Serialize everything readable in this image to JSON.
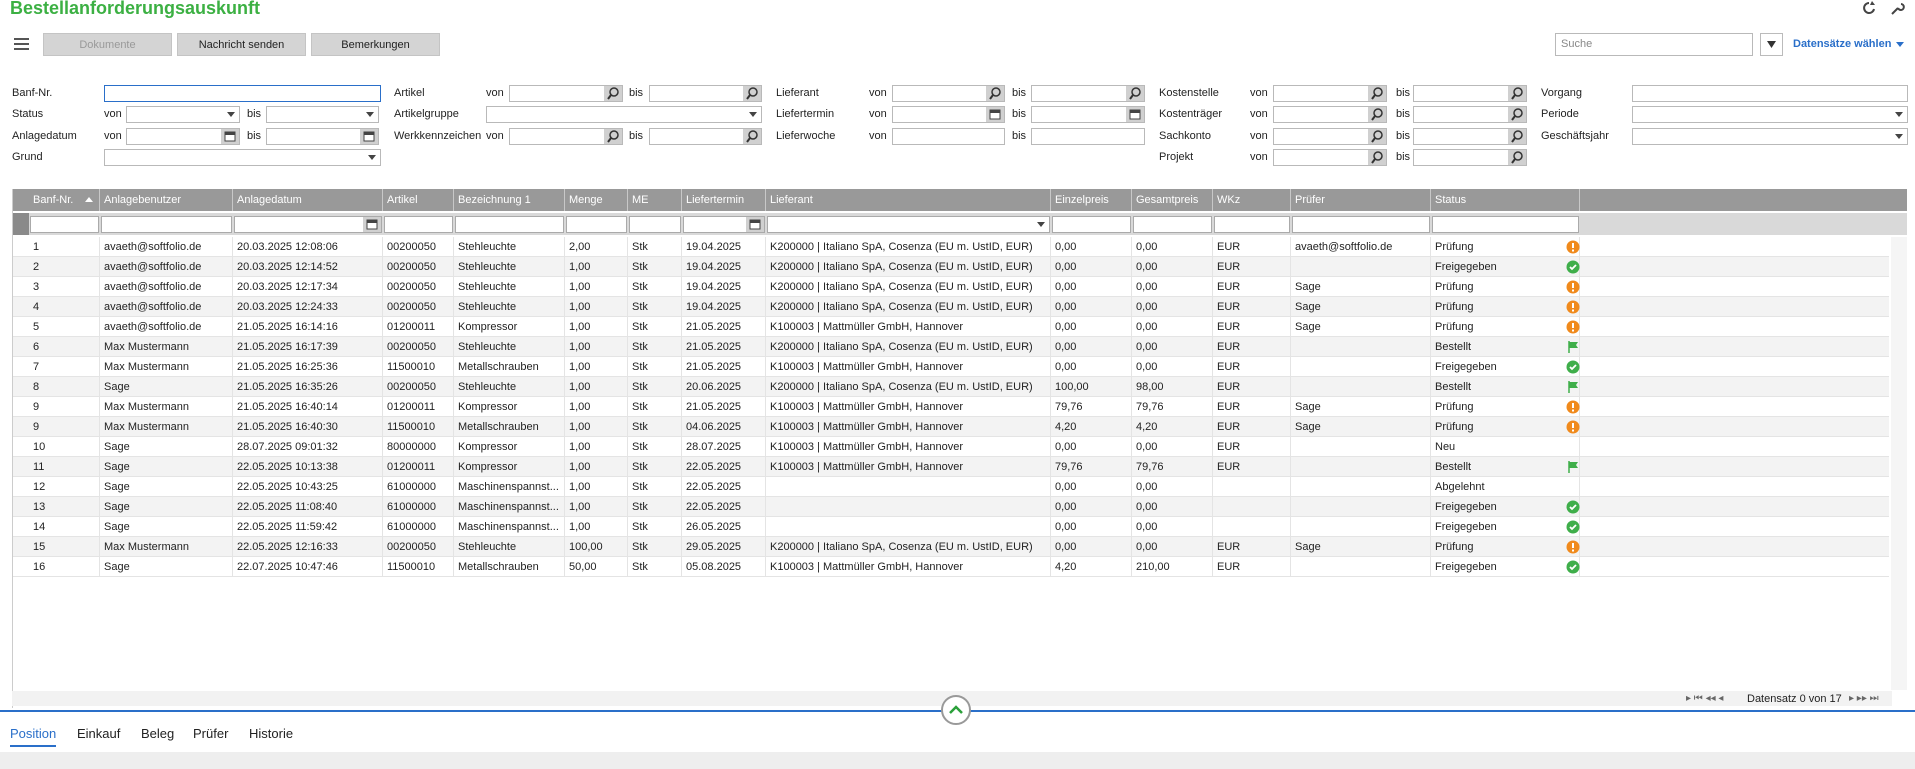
{
  "header": {
    "title": "Bestellanforderungsauskunft",
    "buttons": [
      "Dokumente",
      "Nachricht senden",
      "Bemerkungen"
    ],
    "search_placeholder": "Suche",
    "select_records": "Datensätze wählen"
  },
  "filters": {
    "from": "von",
    "to": "bis",
    "groups": [
      [
        "Banf-Nr.",
        "Status",
        "Anlagedatum",
        "Grund"
      ],
      [
        "Artikel",
        "Artikelgruppe",
        "Werkkennzeichen"
      ],
      [
        "Lieferant",
        "Liefertermin",
        "Lieferwoche"
      ],
      [
        "Kostenstelle",
        "Kostenträger",
        "Sachkonto",
        "Projekt"
      ],
      [
        "Vorgang",
        "Periode",
        "Geschäftsjahr"
      ]
    ]
  },
  "table": {
    "columns": [
      "Banf-Nr.",
      "Anlagebenutzer",
      "Anlagedatum",
      "Artikel",
      "Bezeichnung 1",
      "Menge",
      "ME",
      "Liefertermin",
      "Lieferant",
      "Einzelpreis",
      "Gesamtpreis",
      "WKz",
      "Prüfer",
      "Status"
    ],
    "rows": [
      [
        "1",
        "avaeth@softfolio.de",
        "20.03.2025 12:08:06",
        "00200050",
        "Stehleuchte",
        "2,00",
        "Stk",
        "19.04.2025",
        "K200000  |  Italiano SpA, Cosenza (EU m. UstID, EUR)",
        "0,00",
        "0,00",
        "EUR",
        "avaeth@softfolio.de",
        "Prüfung"
      ],
      [
        "2",
        "avaeth@softfolio.de",
        "20.03.2025 12:14:52",
        "00200050",
        "Stehleuchte",
        "1,00",
        "Stk",
        "19.04.2025",
        "K200000  |  Italiano SpA, Cosenza (EU m. UstID, EUR)",
        "0,00",
        "0,00",
        "EUR",
        null,
        "Freigegeben"
      ],
      [
        "3",
        "avaeth@softfolio.de",
        "20.03.2025 12:17:34",
        "00200050",
        "Stehleuchte",
        "1,00",
        "Stk",
        "19.04.2025",
        "K200000  |  Italiano SpA, Cosenza (EU m. UstID, EUR)",
        "0,00",
        "0,00",
        "EUR",
        "Sage",
        "Prüfung"
      ],
      [
        "4",
        "avaeth@softfolio.de",
        "20.03.2025 12:24:33",
        "00200050",
        "Stehleuchte",
        "1,00",
        "Stk",
        "19.04.2025",
        "K200000  |  Italiano SpA, Cosenza (EU m. UstID, EUR)",
        "0,00",
        "0,00",
        "EUR",
        "Sage",
        "Prüfung"
      ],
      [
        "5",
        "avaeth@softfolio.de",
        "21.05.2025 16:14:16",
        "01200011",
        "Kompressor",
        "1,00",
        "Stk",
        "21.05.2025",
        "K100003  |  Mattmüller GmbH, Hannover",
        "0,00",
        "0,00",
        "EUR",
        "Sage",
        "Prüfung"
      ],
      [
        "6",
        "Max Mustermann",
        "21.05.2025 16:17:39",
        "00200050",
        "Stehleuchte",
        "1,00",
        "Stk",
        "21.05.2025",
        "K200000  |  Italiano SpA, Cosenza (EU m. UstID, EUR)",
        "0,00",
        "0,00",
        "EUR",
        null,
        "Bestellt"
      ],
      [
        "7",
        "Max Mustermann",
        "21.05.2025 16:25:36",
        "11500010",
        "Metallschrauben",
        "1,00",
        "Stk",
        "21.05.2025",
        "K100003  |  Mattmüller GmbH, Hannover",
        "0,00",
        "0,00",
        "EUR",
        null,
        "Freigegeben"
      ],
      [
        "8",
        "Sage",
        "21.05.2025 16:35:26",
        "00200050",
        "Stehleuchte",
        "1,00",
        "Stk",
        "20.06.2025",
        "K200000  |  Italiano SpA, Cosenza (EU m. UstID, EUR)",
        "100,00",
        "98,00",
        "EUR",
        null,
        "Bestellt"
      ],
      [
        "9",
        "Max Mustermann",
        "21.05.2025 16:40:14",
        "01200011",
        "Kompressor",
        "1,00",
        "Stk",
        "21.05.2025",
        "K100003  |  Mattmüller GmbH, Hannover",
        "79,76",
        "79,76",
        "EUR",
        "Sage",
        "Prüfung"
      ],
      [
        "9",
        "Max Mustermann",
        "21.05.2025 16:40:30",
        "11500010",
        "Metallschrauben",
        "1,00",
        "Stk",
        "04.06.2025",
        "K100003  |  Mattmüller GmbH, Hannover",
        "4,20",
        "4,20",
        "EUR",
        "Sage",
        "Prüfung"
      ],
      [
        "10",
        "Sage",
        "28.07.2025 09:01:32",
        "80000000",
        "Kompressor",
        "1,00",
        "Stk",
        "28.07.2025",
        "K100003  |  Mattmüller GmbH, Hannover",
        "0,00",
        "0,00",
        "EUR",
        null,
        "Neu"
      ],
      [
        "11",
        "Sage",
        "22.05.2025 10:13:38",
        "01200011",
        "Kompressor",
        "1,00",
        "Stk",
        "22.05.2025",
        "K100003  |  Mattmüller GmbH, Hannover",
        "79,76",
        "79,76",
        "EUR",
        null,
        "Bestellt"
      ],
      [
        "12",
        "Sage",
        "22.05.2025 10:43:25",
        "61000000",
        "Maschinenspannst...",
        "1,00",
        "Stk",
        "22.05.2025",
        null,
        "0,00",
        "0,00",
        null,
        null,
        "Abgelehnt"
      ],
      [
        "13",
        "Sage",
        "22.05.2025 11:08:40",
        "61000000",
        "Maschinenspannst...",
        "1,00",
        "Stk",
        "22.05.2025",
        null,
        "0,00",
        "0,00",
        null,
        null,
        "Freigegeben"
      ],
      [
        "14",
        "Sage",
        "22.05.2025 11:59:42",
        "61000000",
        "Maschinenspannst...",
        "1,00",
        "Stk",
        "26.05.2025",
        null,
        "0,00",
        "0,00",
        null,
        null,
        "Freigegeben"
      ],
      [
        "15",
        "Max Mustermann",
        "22.05.2025 12:16:33",
        "00200050",
        "Stehleuchte",
        "100,00",
        "Stk",
        "29.05.2025",
        "K200000  |  Italiano SpA, Cosenza (EU m. UstID, EUR)",
        "0,00",
        "0,00",
        "EUR",
        "Sage",
        "Prüfung"
      ],
      [
        "16",
        "Sage",
        "22.07.2025 10:47:46",
        "11500010",
        "Metallschrauben",
        "50,00",
        "Stk",
        "05.08.2025",
        "K100003  |  Mattmüller GmbH, Hannover",
        "4,20",
        "210,00",
        "EUR",
        null,
        "Freigegeben"
      ]
    ]
  },
  "footer": {
    "pager": "Datensatz 0 von 17",
    "tabs": [
      "Position",
      "Einkauf",
      "Beleg",
      "Prüfer",
      "Historie"
    ]
  }
}
